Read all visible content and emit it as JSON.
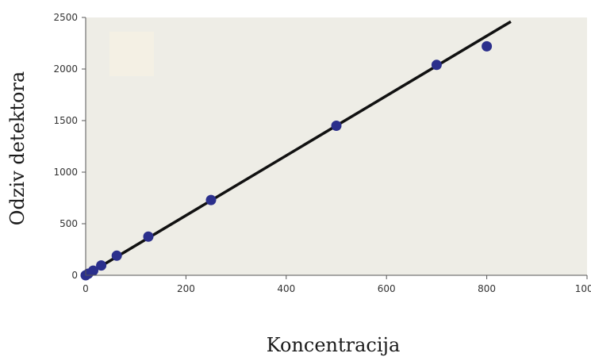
{
  "chart_data": {
    "type": "scatter",
    "title": "",
    "xlabel": "Koncentracija",
    "ylabel": "Odziv detektora",
    "xlim": [
      0,
      1000
    ],
    "ylim": [
      0,
      2500
    ],
    "x_ticks": [
      0,
      200,
      400,
      600,
      800,
      1000
    ],
    "y_ticks": [
      0,
      500,
      1000,
      1500,
      2000,
      2500
    ],
    "grid": false,
    "legend": "none",
    "plot_background": "#eeede6",
    "point_color": "#2b2f8c",
    "line_color": "#111111",
    "points": [
      {
        "x": 0,
        "y": 0
      },
      {
        "x": 5,
        "y": 15
      },
      {
        "x": 15,
        "y": 45
      },
      {
        "x": 31,
        "y": 95
      },
      {
        "x": 62,
        "y": 190
      },
      {
        "x": 125,
        "y": 375
      },
      {
        "x": 250,
        "y": 730
      },
      {
        "x": 500,
        "y": 1450
      },
      {
        "x": 700,
        "y": 2040
      },
      {
        "x": 800,
        "y": 2220
      }
    ],
    "fit_line": {
      "x1": 0,
      "y1": 0,
      "x2": 848,
      "y2": 2460
    }
  }
}
